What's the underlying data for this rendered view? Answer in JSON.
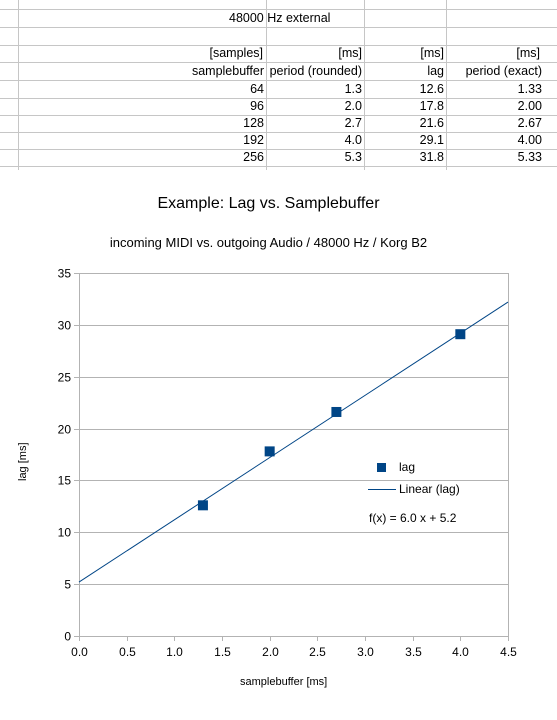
{
  "table": {
    "heading": "48000 Hz external",
    "units": [
      "[samples]",
      "[ms]",
      "[ms]",
      "[ms]"
    ],
    "headers": [
      "samplebuffer",
      "period (rounded)",
      "lag",
      "period (exact)"
    ],
    "rows": [
      [
        "64",
        "1.3",
        "12.6",
        "1.33"
      ],
      [
        "96",
        "2.0",
        "17.8",
        "2.00"
      ],
      [
        "128",
        "2.7",
        "21.6",
        "2.67"
      ],
      [
        "192",
        "4.0",
        "29.1",
        "4.00"
      ],
      [
        "256",
        "5.3",
        "31.8",
        "5.33"
      ]
    ]
  },
  "chart_data": {
    "type": "scatter",
    "title": "Example: Lag vs. Samplebuffer",
    "subtitle": "incoming MIDI vs. outgoing Audio / 48000 Hz / Korg B2",
    "xlabel": "samplebuffer [ms]",
    "ylabel": "lag [ms]",
    "xlim": [
      0,
      4.5
    ],
    "ylim": [
      0,
      35
    ],
    "x_ticks": [
      "0.0",
      "0.5",
      "1.0",
      "1.5",
      "2.0",
      "2.5",
      "3.0",
      "3.5",
      "4.0",
      "4.5"
    ],
    "y_ticks": [
      "0",
      "5",
      "10",
      "15",
      "20",
      "25",
      "30",
      "35"
    ],
    "grid": "horizontal",
    "series": [
      {
        "name": "lag",
        "x": [
          1.3,
          2.0,
          2.7,
          4.0
        ],
        "y": [
          12.6,
          17.8,
          21.6,
          29.1
        ],
        "color": "#004586"
      }
    ],
    "trendline": {
      "name": "Linear (lag)",
      "slope": 6.0,
      "intercept": 5.2,
      "equation": "f(x) = 6.0 x + 5.2",
      "color": "#004586"
    },
    "legend": "right"
  }
}
